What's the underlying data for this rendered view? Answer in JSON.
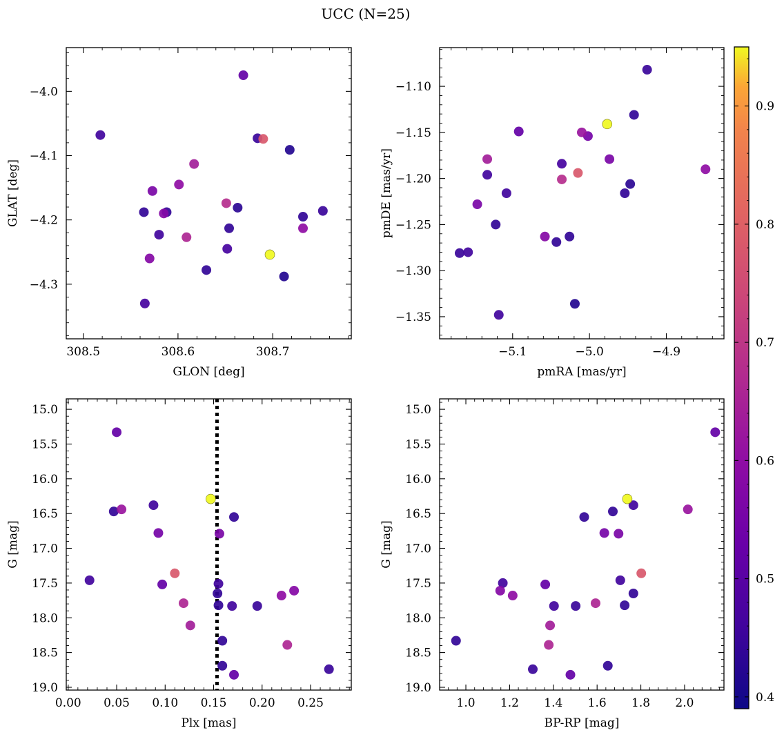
{
  "chart_data": {
    "title": "UCC (N=25)",
    "colorbar": {
      "range": [
        0.39,
        0.95
      ],
      "ticks": [
        0.4,
        0.5,
        0.6,
        0.7,
        0.8,
        0.9
      ],
      "tick_labels": [
        "0.4",
        "0.5",
        "0.6",
        "0.7",
        "0.8",
        "0.9"
      ],
      "colormap": "plasma"
    },
    "panels": [
      {
        "type": "scatter",
        "xlabel": "GLON [deg]",
        "ylabel": "GLAT [deg]",
        "xlim": [
          308.482,
          308.783
        ],
        "ylim": [
          -4.385,
          -3.932
        ],
        "y_inverted": false,
        "xticks": [
          308.5,
          308.6,
          308.7
        ],
        "xtick_labels": [
          "308.5",
          "308.6",
          "308.7"
        ],
        "yticks": [
          -4.0,
          -4.1,
          -4.2,
          -4.3
        ],
        "ytick_labels": [
          "−4.0",
          "−4.1",
          "−4.2",
          "−4.3"
        ],
        "points": [
          {
            "x": 308.518,
            "y": -4.068,
            "c": 0.46
          },
          {
            "x": 308.669,
            "y": -3.975,
            "c": 0.52
          },
          {
            "x": 308.684,
            "y": -4.073,
            "c": 0.45
          },
          {
            "x": 308.69,
            "y": -4.074,
            "c": 0.78
          },
          {
            "x": 308.718,
            "y": -4.091,
            "c": 0.42
          },
          {
            "x": 308.617,
            "y": -4.113,
            "c": 0.64
          },
          {
            "x": 308.601,
            "y": -4.145,
            "c": 0.6
          },
          {
            "x": 308.573,
            "y": -4.155,
            "c": 0.56
          },
          {
            "x": 308.651,
            "y": -4.174,
            "c": 0.68
          },
          {
            "x": 308.663,
            "y": -4.181,
            "c": 0.43
          },
          {
            "x": 308.564,
            "y": -4.188,
            "c": 0.44
          },
          {
            "x": 308.588,
            "y": -4.188,
            "c": 0.44
          },
          {
            "x": 308.585,
            "y": -4.19,
            "c": 0.58
          },
          {
            "x": 308.753,
            "y": -4.186,
            "c": 0.45
          },
          {
            "x": 308.732,
            "y": -4.195,
            "c": 0.44
          },
          {
            "x": 308.654,
            "y": -4.213,
            "c": 0.44
          },
          {
            "x": 308.732,
            "y": -4.213,
            "c": 0.6
          },
          {
            "x": 308.58,
            "y": -4.223,
            "c": 0.46
          },
          {
            "x": 308.609,
            "y": -4.227,
            "c": 0.66
          },
          {
            "x": 308.652,
            "y": -4.245,
            "c": 0.47
          },
          {
            "x": 308.697,
            "y": -4.254,
            "c": 0.95
          },
          {
            "x": 308.57,
            "y": -4.26,
            "c": 0.58
          },
          {
            "x": 308.63,
            "y": -4.278,
            "c": 0.44
          },
          {
            "x": 308.712,
            "y": -4.288,
            "c": 0.42
          },
          {
            "x": 308.565,
            "y": -4.33,
            "c": 0.47
          }
        ]
      },
      {
        "type": "scatter",
        "xlabel": "pmRA [mas/yr]",
        "ylabel": "pmDE [mas/yr]",
        "xlim": [
          -5.195,
          -4.825
        ],
        "ylim": [
          -1.374,
          -1.058
        ],
        "y_inverted": false,
        "xticks": [
          -5.1,
          -5.0,
          -4.9
        ],
        "xtick_labels": [
          "−5.1",
          "−5.0",
          "−4.9"
        ],
        "yticks": [
          -1.1,
          -1.15,
          -1.2,
          -1.25,
          -1.3,
          -1.35
        ],
        "ytick_labels": [
          "−1.10",
          "−1.15",
          "−1.20",
          "−1.25",
          "−1.30",
          "−1.35"
        ],
        "points": [
          {
            "x": -4.925,
            "y": -1.082,
            "c": 0.45
          },
          {
            "x": -4.942,
            "y": -1.131,
            "c": 0.44
          },
          {
            "x": -4.977,
            "y": -1.141,
            "c": 0.95
          },
          {
            "x": -5.092,
            "y": -1.149,
            "c": 0.52
          },
          {
            "x": -5.01,
            "y": -1.15,
            "c": 0.62
          },
          {
            "x": -5.002,
            "y": -1.154,
            "c": 0.55
          },
          {
            "x": -5.133,
            "y": -1.179,
            "c": 0.64
          },
          {
            "x": -4.974,
            "y": -1.179,
            "c": 0.56
          },
          {
            "x": -5.036,
            "y": -1.184,
            "c": 0.47
          },
          {
            "x": -4.849,
            "y": -1.19,
            "c": 0.6
          },
          {
            "x": -5.015,
            "y": -1.194,
            "c": 0.78
          },
          {
            "x": -5.133,
            "y": -1.196,
            "c": 0.46
          },
          {
            "x": -5.036,
            "y": -1.201,
            "c": 0.68
          },
          {
            "x": -4.947,
            "y": -1.206,
            "c": 0.43
          },
          {
            "x": -5.108,
            "y": -1.216,
            "c": 0.46
          },
          {
            "x": -4.954,
            "y": -1.216,
            "c": 0.44
          },
          {
            "x": -5.146,
            "y": -1.228,
            "c": 0.56
          },
          {
            "x": -5.122,
            "y": -1.25,
            "c": 0.44
          },
          {
            "x": -5.058,
            "y": -1.263,
            "c": 0.58
          },
          {
            "x": -5.026,
            "y": -1.263,
            "c": 0.44
          },
          {
            "x": -5.043,
            "y": -1.269,
            "c": 0.44
          },
          {
            "x": -5.169,
            "y": -1.281,
            "c": 0.45
          },
          {
            "x": -5.158,
            "y": -1.28,
            "c": 0.46
          },
          {
            "x": -5.019,
            "y": -1.336,
            "c": 0.42
          },
          {
            "x": -5.118,
            "y": -1.348,
            "c": 0.46
          }
        ]
      },
      {
        "type": "scatter",
        "xlabel": "Plx [mas]",
        "ylabel": "G [mag]",
        "xlim": [
          -0.002,
          0.292
        ],
        "ylim": [
          19.04,
          14.85
        ],
        "y_inverted": true,
        "xticks": [
          0.0,
          0.05,
          0.1,
          0.15,
          0.2,
          0.25
        ],
        "xtick_labels": [
          "0.00",
          "0.05",
          "0.10",
          "0.15",
          "0.20",
          "0.25"
        ],
        "yticks": [
          15.0,
          15.5,
          16.0,
          16.5,
          17.0,
          17.5,
          18.0,
          18.5,
          19.0
        ],
        "ytick_labels": [
          "15.0",
          "15.5",
          "16.0",
          "16.5",
          "17.0",
          "17.5",
          "18.0",
          "18.5",
          "19.0"
        ],
        "vline": {
          "x": 0.1535,
          "style": "dotted"
        },
        "points": [
          {
            "x": 0.05,
            "y": 15.33,
            "c": 0.52
          },
          {
            "x": 0.147,
            "y": 16.29,
            "c": 0.95
          },
          {
            "x": 0.088,
            "y": 16.38,
            "c": 0.46
          },
          {
            "x": 0.047,
            "y": 16.47,
            "c": 0.44
          },
          {
            "x": 0.055,
            "y": 16.44,
            "c": 0.62
          },
          {
            "x": 0.171,
            "y": 16.55,
            "c": 0.44
          },
          {
            "x": 0.093,
            "y": 16.78,
            "c": 0.55
          },
          {
            "x": 0.156,
            "y": 16.79,
            "c": 0.56
          },
          {
            "x": 0.11,
            "y": 17.36,
            "c": 0.78
          },
          {
            "x": 0.022,
            "y": 17.46,
            "c": 0.46
          },
          {
            "x": 0.097,
            "y": 17.52,
            "c": 0.52
          },
          {
            "x": 0.155,
            "y": 17.51,
            "c": 0.46
          },
          {
            "x": 0.233,
            "y": 17.61,
            "c": 0.58
          },
          {
            "x": 0.154,
            "y": 17.65,
            "c": 0.44
          },
          {
            "x": 0.22,
            "y": 17.68,
            "c": 0.6
          },
          {
            "x": 0.119,
            "y": 17.79,
            "c": 0.66
          },
          {
            "x": 0.155,
            "y": 17.82,
            "c": 0.44
          },
          {
            "x": 0.169,
            "y": 17.83,
            "c": 0.46
          },
          {
            "x": 0.195,
            "y": 17.83,
            "c": 0.45
          },
          {
            "x": 0.126,
            "y": 18.11,
            "c": 0.64
          },
          {
            "x": 0.159,
            "y": 18.33,
            "c": 0.44
          },
          {
            "x": 0.226,
            "y": 18.39,
            "c": 0.66
          },
          {
            "x": 0.159,
            "y": 18.69,
            "c": 0.44
          },
          {
            "x": 0.171,
            "y": 18.82,
            "c": 0.52
          },
          {
            "x": 0.269,
            "y": 18.74,
            "c": 0.45
          }
        ]
      },
      {
        "type": "scatter",
        "xlabel": "BP-RP [mag]",
        "ylabel": "G [mag]",
        "xlim": [
          0.88,
          2.18
        ],
        "ylim": [
          19.04,
          14.85
        ],
        "y_inverted": true,
        "xticks": [
          1.0,
          1.2,
          1.4,
          1.6,
          1.8,
          2.0
        ],
        "xtick_labels": [
          "1.0",
          "1.2",
          "1.4",
          "1.6",
          "1.8",
          "2.0"
        ],
        "yticks": [
          15.0,
          15.5,
          16.0,
          16.5,
          17.0,
          17.5,
          18.0,
          18.5,
          19.0
        ],
        "ytick_labels": [
          "15.0",
          "15.5",
          "16.0",
          "16.5",
          "17.0",
          "17.5",
          "18.0",
          "18.5",
          "19.0"
        ],
        "points": [
          {
            "x": 2.14,
            "y": 15.33,
            "c": 0.52
          },
          {
            "x": 1.738,
            "y": 16.29,
            "c": 0.95
          },
          {
            "x": 1.766,
            "y": 16.38,
            "c": 0.46
          },
          {
            "x": 1.672,
            "y": 16.47,
            "c": 0.44
          },
          {
            "x": 2.015,
            "y": 16.44,
            "c": 0.62
          },
          {
            "x": 1.541,
            "y": 16.55,
            "c": 0.44
          },
          {
            "x": 1.633,
            "y": 16.78,
            "c": 0.55
          },
          {
            "x": 1.698,
            "y": 16.79,
            "c": 0.56
          },
          {
            "x": 1.802,
            "y": 17.36,
            "c": 0.78
          },
          {
            "x": 1.706,
            "y": 17.46,
            "c": 0.46
          },
          {
            "x": 1.169,
            "y": 17.5,
            "c": 0.46
          },
          {
            "x": 1.363,
            "y": 17.52,
            "c": 0.52
          },
          {
            "x": 1.157,
            "y": 17.61,
            "c": 0.58
          },
          {
            "x": 1.766,
            "y": 17.65,
            "c": 0.44
          },
          {
            "x": 1.214,
            "y": 17.68,
            "c": 0.6
          },
          {
            "x": 1.593,
            "y": 17.79,
            "c": 0.66
          },
          {
            "x": 1.403,
            "y": 17.83,
            "c": 0.46
          },
          {
            "x": 1.502,
            "y": 17.83,
            "c": 0.45
          },
          {
            "x": 1.726,
            "y": 17.82,
            "c": 0.44
          },
          {
            "x": 1.385,
            "y": 18.11,
            "c": 0.64
          },
          {
            "x": 0.955,
            "y": 18.33,
            "c": 0.44
          },
          {
            "x": 1.379,
            "y": 18.39,
            "c": 0.66
          },
          {
            "x": 1.649,
            "y": 18.69,
            "c": 0.44
          },
          {
            "x": 1.306,
            "y": 18.74,
            "c": 0.45
          },
          {
            "x": 1.478,
            "y": 18.82,
            "c": 0.52
          }
        ]
      }
    ]
  }
}
